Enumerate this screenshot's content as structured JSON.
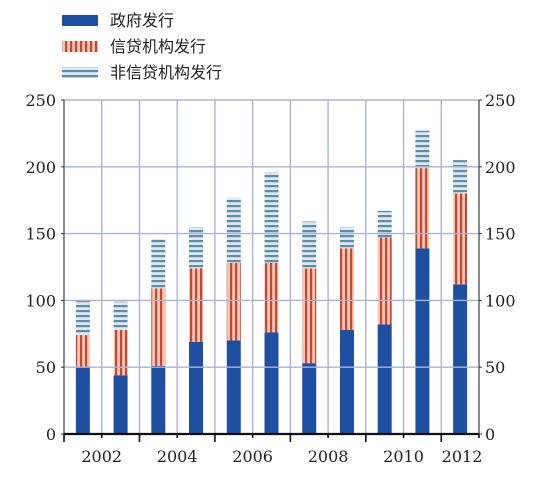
{
  "chart_data": {
    "type": "bar",
    "stacked": true,
    "categories": [
      "2002",
      "2003",
      "2004",
      "2005",
      "2006",
      "2007",
      "2008",
      "2009",
      "2010",
      "2011",
      "2012"
    ],
    "x_tick_labels": [
      "2002",
      "2004",
      "2006",
      "2008",
      "2010",
      "2012"
    ],
    "y_ticks": [
      0,
      50,
      100,
      150,
      200,
      250
    ],
    "ylim": [
      0,
      250
    ],
    "grid": true,
    "legend_position": "top-left",
    "series": [
      {
        "name": "政府发行",
        "color": "#1f4fa0",
        "pattern": "solid",
        "values": [
          50,
          44,
          51,
          69,
          70,
          76,
          53,
          78,
          82,
          139,
          112
        ]
      },
      {
        "name": "信贷机构发行",
        "color": "#c8452e",
        "pattern": "vertical-stripes",
        "values": [
          24,
          34,
          58,
          55,
          58,
          52,
          71,
          61,
          65,
          60,
          68
        ]
      },
      {
        "name": "非信贷机构发行",
        "color": "#5e8ca8",
        "pattern": "horizontal-stripes",
        "values": [
          26,
          21,
          37,
          31,
          49,
          68,
          35,
          16,
          20,
          28,
          25
        ]
      }
    ]
  }
}
